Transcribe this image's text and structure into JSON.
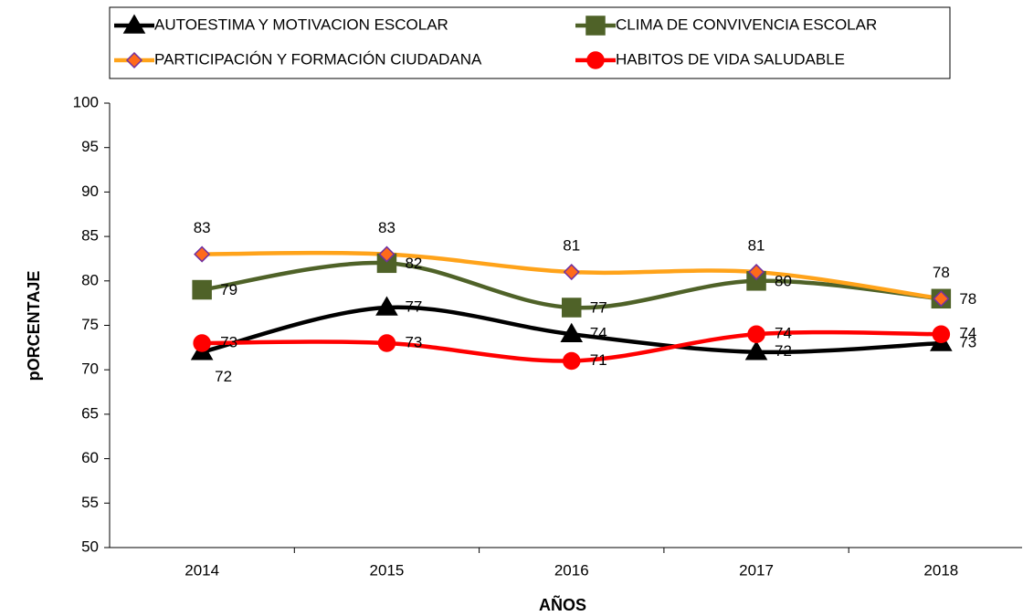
{
  "chart_data": {
    "type": "line",
    "smooth": true,
    "legend": "top",
    "xlabel": "AÑOS",
    "ylabel": "pORCENTAJE",
    "categories": [
      "2014",
      "2015",
      "2016",
      "2017",
      "2018"
    ],
    "ylim": [
      50,
      100
    ],
    "yticks": [
      50,
      55,
      60,
      65,
      70,
      75,
      80,
      85,
      90,
      95,
      100
    ],
    "series": [
      {
        "name": "AUTOESTIMA Y MOTIVACION ESCOLAR",
        "color": "#000000",
        "marker": "triangle",
        "marker_fill": "#000000",
        "marker_stroke": "#000000",
        "values": [
          72,
          77,
          74,
          72,
          73
        ]
      },
      {
        "name": "CLIMA DE CONVIVENCIA ESCOLAR",
        "color": "#4f6228",
        "marker": "square",
        "marker_fill": "#4f6228",
        "marker_stroke": "#4f6228",
        "values": [
          79,
          82,
          77,
          80,
          78
        ]
      },
      {
        "name": "PARTICIPACIÓN Y FORMACIÓN CIUDADANA",
        "color": "#ffa31a",
        "marker": "diamond",
        "marker_fill": "#ff6a1a",
        "marker_stroke": "#7030a0",
        "values": [
          83,
          83,
          81,
          81,
          78
        ]
      },
      {
        "name": "HABITOS DE VIDA SALUDABLE",
        "color": "#ff0000",
        "marker": "circle",
        "marker_fill": "#ff0000",
        "marker_stroke": "#ff0000",
        "values": [
          73,
          73,
          71,
          74,
          74
        ]
      }
    ]
  }
}
